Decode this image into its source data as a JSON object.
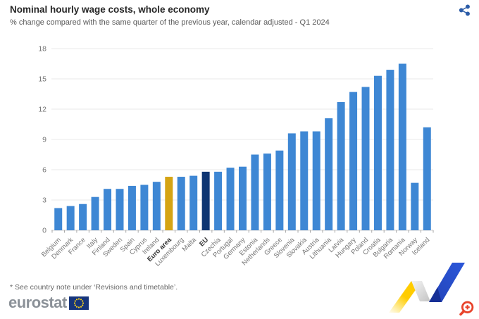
{
  "header": {
    "title": "Nominal hourly wage costs, whole economy",
    "subtitle": "% change compared with the same quarter of the previous year, calendar adjusted - Q1 2024"
  },
  "chart_data": {
    "type": "bar",
    "title": "Nominal hourly wage costs, whole economy",
    "xlabel": "",
    "ylabel": "% change on same quarter of previous year",
    "categories": [
      "Belgium",
      "Denmark",
      "France",
      "Italy",
      "Finland",
      "Sweden",
      "Spain",
      "Cyprus",
      "Ireland",
      "Euro area",
      "Luxembourg",
      "Malta",
      "EU",
      "Czechia",
      "Portugal",
      "Germany",
      "Estonia",
      "Netherlands",
      "Greece",
      "Slovenia",
      "Slovakia",
      "Austria",
      "Lithuania",
      "Latvia",
      "Hungary",
      "Poland",
      "Croatia",
      "Bulgaria",
      "Romania",
      "Norway",
      "Iceland"
    ],
    "values": [
      2.2,
      2.4,
      2.6,
      3.3,
      4.1,
      4.1,
      4.4,
      4.5,
      4.8,
      5.3,
      5.3,
      5.4,
      5.8,
      5.8,
      6.2,
      6.3,
      7.5,
      7.6,
      7.9,
      9.6,
      9.8,
      9.8,
      11.1,
      12.7,
      13.7,
      14.2,
      15.3,
      15.9,
      16.5,
      4.7,
      10.2
    ],
    "yticks": [
      0,
      3,
      6,
      9,
      12,
      15,
      18
    ],
    "ylim": [
      0,
      18
    ],
    "grid": true,
    "legend": "none",
    "bar_color": "#3e87d4",
    "highlights": {
      "Euro area": "#d5a414",
      "EU": "#0e3572"
    },
    "emphasized_labels": [
      "Euro area",
      "EU"
    ],
    "axis_label_color": "#757575",
    "emphasis_label_color": "#333333",
    "gridline_color": "#e8e8e8",
    "baseline_color": "#cfcfcf",
    "tick_color": "#a6a6a6"
  },
  "footer": {
    "note": "* See country note under ‘Revisions and timetable’.",
    "logo_text": "eurostat"
  },
  "icons": {
    "share": "share-icon",
    "zoom_in": "magnifier-plus-icon",
    "eu_flag": "eu-flag-icon",
    "ribbon": "eurostat-ribbon-graphic"
  },
  "colors": {
    "share_icon": "#2d5da8",
    "zoom_icon": "#e8432b",
    "flag_navy": "#16357c",
    "flag_stars": "#ffd617",
    "ribbon_yellow": "#ffcc00",
    "ribbon_blue": "#2a4ecf"
  }
}
